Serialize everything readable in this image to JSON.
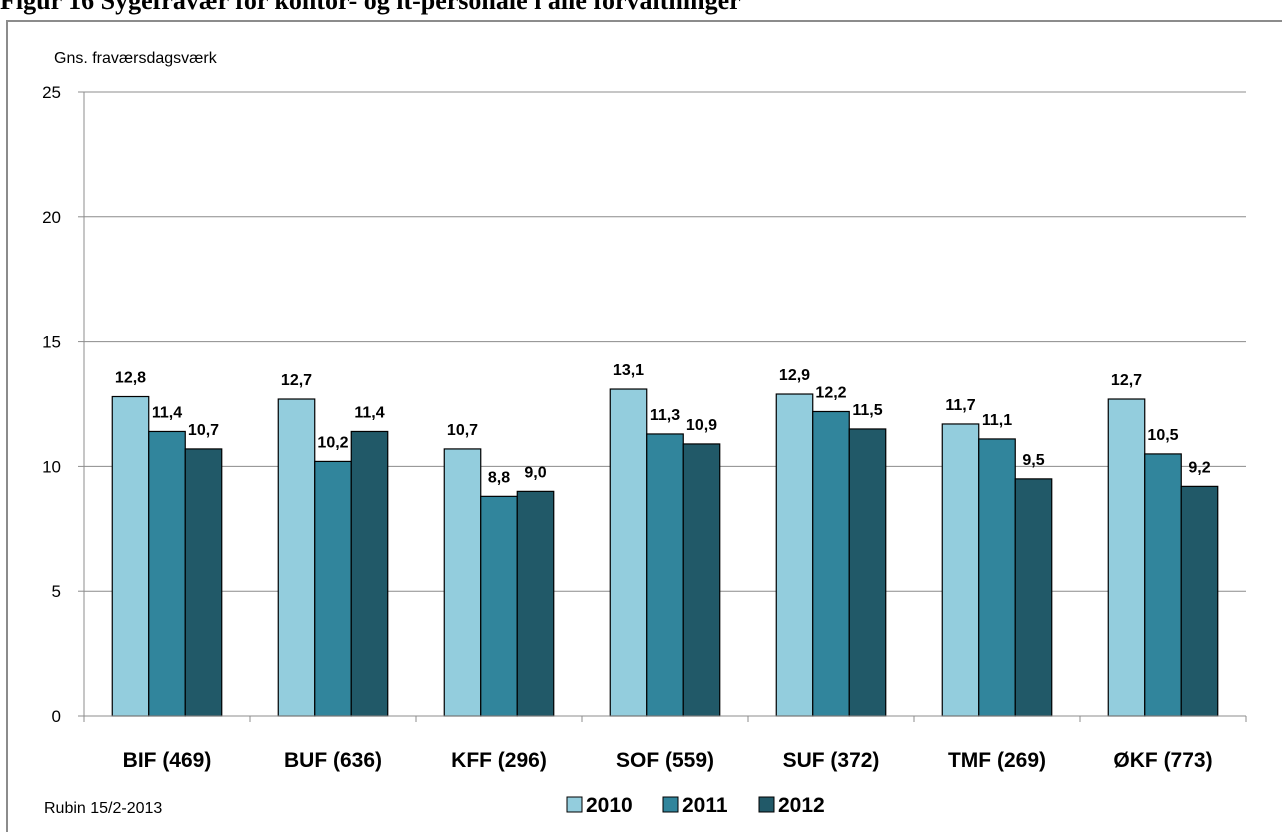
{
  "figure_title": "Figur 16     Sygefravær for kontor- og it-personale i alle forvaltninger",
  "source_note": "Rubin 15/2-2013",
  "colors": {
    "2010": "#93cddd",
    "2011": "#31859c",
    "2012": "#215968"
  },
  "chart_data": {
    "type": "bar",
    "title": "",
    "xlabel": "",
    "ylabel": "Gns. fraværsdagsværk",
    "ylim": [
      0,
      25
    ],
    "yticks": [
      "0",
      "5",
      "10",
      "15",
      "20",
      "25"
    ],
    "grid": true,
    "legend_position": "bottom",
    "categories": [
      "BIF (469)",
      "BUF (636)",
      "KFF (296)",
      "SOF (559)",
      "SUF (372)",
      "TMF (269)",
      "ØKF (773)"
    ],
    "series": [
      {
        "name": "2010",
        "values": [
          12.8,
          12.7,
          10.7,
          13.1,
          12.9,
          11.7,
          12.7
        ],
        "labels": [
          "12,8",
          "12,7",
          "10,7",
          "13,1",
          "12,9",
          "11,7",
          "12,7"
        ]
      },
      {
        "name": "2011",
        "values": [
          11.4,
          10.2,
          8.8,
          11.3,
          12.2,
          11.1,
          10.5
        ],
        "labels": [
          "11,4",
          "10,2",
          "8,8",
          "11,3",
          "12,2",
          "11,1",
          "10,5"
        ]
      },
      {
        "name": "2012",
        "values": [
          10.7,
          11.4,
          9.0,
          10.9,
          11.5,
          9.5,
          9.2
        ],
        "labels": [
          "10,7",
          "11,4",
          "9,0",
          "10,9",
          "11,5",
          "9,5",
          "9,2"
        ]
      }
    ]
  }
}
